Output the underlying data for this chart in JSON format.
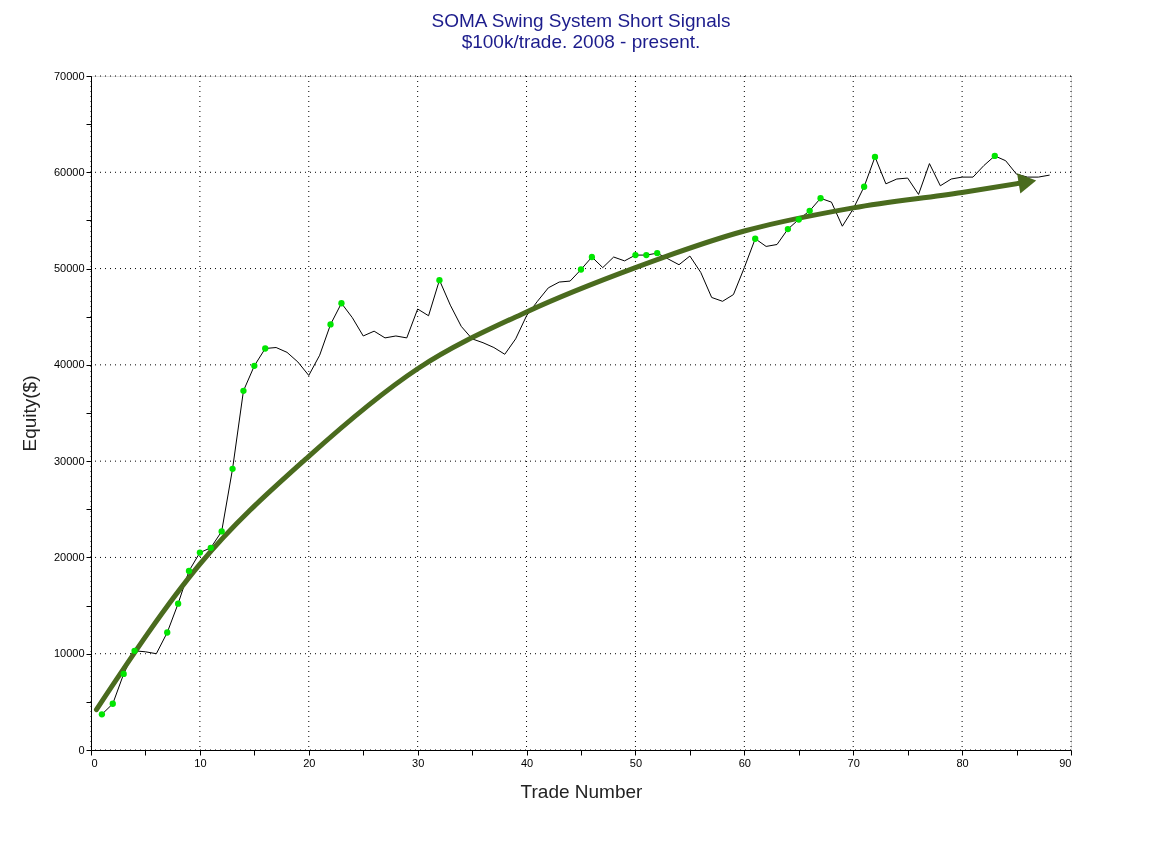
{
  "chart_data": {
    "type": "line",
    "title": "SOMA Swing System Short Signals",
    "subtitle": "$100k/trade. 2008 - present.",
    "xlabel": "Trade Number",
    "ylabel": "Equity($)",
    "xlim": [
      0,
      90
    ],
    "ylim": [
      0,
      70000
    ],
    "xticks": [
      0,
      {
        "value": 5,
        "label": null
      },
      10,
      {
        "value": 15,
        "label": null
      },
      20,
      {
        "value": 25,
        "label": null
      },
      30,
      {
        "value": 35,
        "label": null
      },
      40,
      {
        "value": 45,
        "label": null
      },
      50,
      {
        "value": 55,
        "label": null
      },
      60,
      {
        "value": 65,
        "label": null
      },
      70,
      {
        "value": 75,
        "label": null
      },
      80,
      {
        "value": 85,
        "label": null
      },
      90
    ],
    "yticks": [
      0,
      {
        "value": 5000,
        "label": null
      },
      10000,
      {
        "value": 15000,
        "label": null
      },
      20000,
      {
        "value": 25000,
        "label": null
      },
      30000,
      {
        "value": 35000,
        "label": null
      },
      40000,
      {
        "value": 45000,
        "label": null
      },
      50000,
      {
        "value": 55000,
        "label": null
      },
      60000,
      {
        "value": 65000,
        "label": null
      },
      70000
    ],
    "grid": true,
    "series": [
      {
        "color": "#000000",
        "x": [
          1,
          2,
          3,
          4,
          5,
          6,
          7,
          8,
          9,
          10,
          11,
          12,
          13,
          14,
          15,
          16,
          17,
          18,
          19,
          20,
          21,
          22,
          23,
          24,
          25,
          26,
          27,
          28,
          29,
          30,
          31,
          32,
          33,
          34,
          35,
          36,
          37,
          38,
          39,
          40,
          41,
          42,
          43,
          44,
          45,
          46,
          47,
          48,
          49,
          50,
          51,
          52,
          53,
          54,
          55,
          56,
          57,
          58,
          59,
          60,
          61,
          62,
          63,
          64,
          65,
          66,
          67,
          68,
          69,
          70,
          71,
          72,
          73,
          74,
          75,
          76,
          77,
          78,
          79,
          80,
          81,
          82,
          83,
          84,
          85,
          86,
          87,
          88
        ],
        "values": [
          3700,
          4800,
          7900,
          10300,
          10200,
          10000,
          12200,
          15200,
          18600,
          20500,
          21000,
          22700,
          29200,
          37300,
          39900,
          41700,
          41800,
          41300,
          40300,
          38900,
          41000,
          44200,
          46400,
          44900,
          43000,
          43500,
          42800,
          43000,
          42800,
          45800,
          45100,
          48800,
          46200,
          44000,
          42700,
          42300,
          41800,
          41100,
          42700,
          45100,
          46600,
          48000,
          48600,
          48700,
          49900,
          51200,
          50100,
          51200,
          50800,
          51400,
          51400,
          51600,
          51000,
          50400,
          51300,
          49600,
          47000,
          46600,
          47300,
          50100,
          53100,
          52300,
          52500,
          54100,
          55100,
          56000,
          57300,
          56900,
          54400,
          56200,
          58500,
          61600,
          58800,
          59300,
          59400,
          57700,
          60900,
          58600,
          59300,
          59500,
          59500,
          60700,
          61700,
          61200,
          59800,
          59500,
          59500,
          59700
        ]
      },
      {
        "type": "scatter",
        "color": "#00e600",
        "marker": "circle",
        "x": [
          1,
          2,
          3,
          4,
          7,
          8,
          9,
          10,
          11,
          12,
          13,
          14,
          15,
          16,
          22,
          23,
          32,
          45,
          46,
          50,
          51,
          52,
          61,
          64,
          65,
          66,
          67,
          71,
          72,
          83
        ],
        "values": [
          3700,
          4800,
          7900,
          10300,
          12200,
          15200,
          18600,
          20500,
          21000,
          22700,
          29200,
          37300,
          39900,
          41700,
          44200,
          46400,
          48800,
          49900,
          51200,
          51400,
          51400,
          51600,
          53100,
          54100,
          55100,
          56000,
          57300,
          58500,
          61600,
          61700
        ]
      },
      {
        "type": "line",
        "color": "#4a6b1e",
        "x": [
          0.5,
          10,
          20,
          30,
          40,
          50,
          60,
          70,
          80,
          86
        ],
        "values": [
          4200,
          19300,
          30500,
          39600,
          45500,
          50100,
          53900,
          56300,
          57900,
          59000
        ]
      }
    ]
  }
}
